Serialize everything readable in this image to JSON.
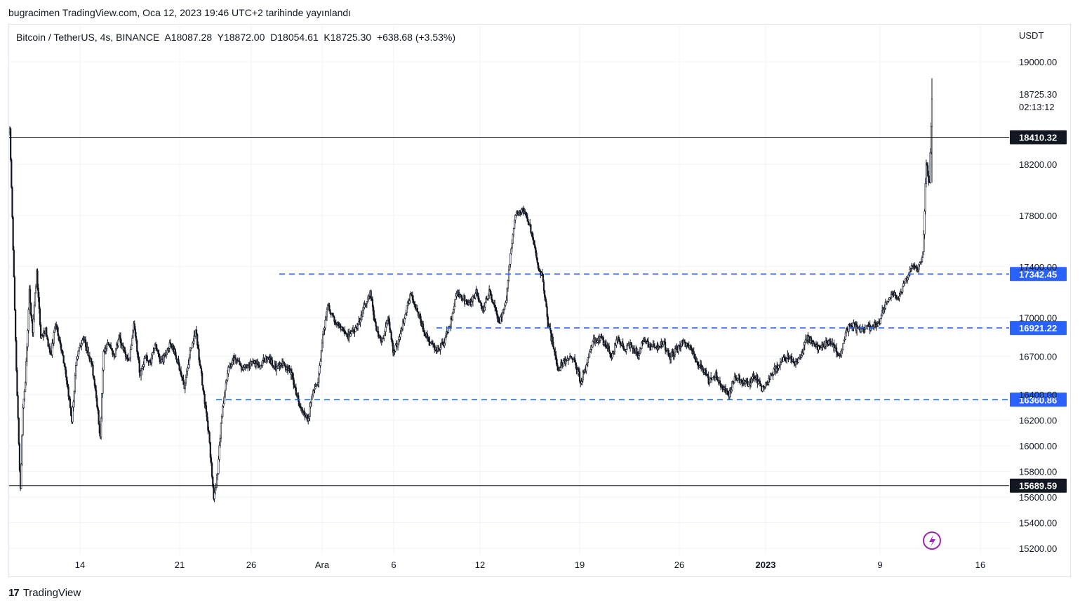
{
  "publisher_line": "bugracimen TradingView.com, Oca 12, 2023 19:46 UTC+2 tarihinde yayınlandı",
  "legend": "Bitcoin / TetherUS, 4s, BINANCE  A18087.28  Y18872.00  D18054.61  K18725.30  +638.68 (+3.53%)",
  "brand": "TradingView",
  "colors": {
    "candle": "#131722",
    "dash": "#2962ff",
    "label_blue": "#2962ff",
    "label_black": "#131722",
    "grid": "#f0f3fa",
    "alert": "#9c27b0"
  },
  "chart_data": {
    "type": "candlestick",
    "y_unit": "USDT",
    "ylim": [
      15100,
      19200
    ],
    "y_ticks": [
      15200,
      15400,
      15600,
      15800,
      16000,
      16200,
      16400,
      16700,
      17000,
      17400,
      17800,
      18200,
      19000
    ],
    "y_tick_labels": [
      "15200.00",
      "15400.00",
      "15600.00",
      "15800.00",
      "16000.00",
      "16200.00",
      "16400.00",
      "16700.00",
      "17000.00",
      "17400.00",
      "17800.00",
      "18200.00",
      "19000.00"
    ],
    "x_ticks": [
      "14",
      "21",
      "26",
      "Ara",
      "6",
      "12",
      "19",
      "26",
      "2023",
      "9",
      "16"
    ],
    "last_price": "18725.30",
    "countdown": "02:13:12",
    "levels": [
      {
        "value": 18410.32,
        "label": "18410.32",
        "style": "solid"
      },
      {
        "value": 17342.45,
        "label": "17342.45",
        "style": "dashed"
      },
      {
        "value": 16921.22,
        "label": "16921.22",
        "style": "dashed"
      },
      {
        "value": 16360.86,
        "label": "16360.86",
        "style": "dashed"
      },
      {
        "value": 15689.59,
        "label": "15689.59",
        "style": "solid"
      }
    ],
    "price_path": [
      [
        0,
        18450
      ],
      [
        3,
        17800
      ],
      [
        7,
        16800
      ],
      [
        10,
        16200
      ],
      [
        13,
        15650
      ],
      [
        16,
        16300
      ],
      [
        19,
        16500
      ],
      [
        24,
        17200
      ],
      [
        28,
        16900
      ],
      [
        33,
        17350
      ],
      [
        38,
        16850
      ],
      [
        44,
        16900
      ],
      [
        50,
        16700
      ],
      [
        56,
        16950
      ],
      [
        62,
        16800
      ],
      [
        70,
        16500
      ],
      [
        76,
        16200
      ],
      [
        82,
        16700
      ],
      [
        90,
        16850
      ],
      [
        100,
        16650
      ],
      [
        106,
        16400
      ],
      [
        111,
        16050
      ],
      [
        115,
        16750
      ],
      [
        121,
        16800
      ],
      [
        128,
        16700
      ],
      [
        134,
        16850
      ],
      [
        140,
        16750
      ],
      [
        146,
        16650
      ],
      [
        152,
        16950
      ],
      [
        160,
        16550
      ],
      [
        166,
        16700
      ],
      [
        172,
        16650
      ],
      [
        178,
        16800
      ],
      [
        184,
        16650
      ],
      [
        190,
        16700
      ],
      [
        196,
        16800
      ],
      [
        202,
        16750
      ],
      [
        208,
        16600
      ],
      [
        214,
        16450
      ],
      [
        220,
        16700
      ],
      [
        228,
        16900
      ],
      [
        236,
        16500
      ],
      [
        244,
        16100
      ],
      [
        250,
        15600
      ],
      [
        255,
        15800
      ],
      [
        260,
        16250
      ],
      [
        268,
        16600
      ],
      [
        276,
        16700
      ],
      [
        286,
        16600
      ],
      [
        296,
        16650
      ],
      [
        306,
        16620
      ],
      [
        316,
        16700
      ],
      [
        326,
        16600
      ],
      [
        336,
        16650
      ],
      [
        346,
        16550
      ],
      [
        356,
        16300
      ],
      [
        366,
        16200
      ],
      [
        372,
        16450
      ],
      [
        378,
        16500
      ],
      [
        384,
        16850
      ],
      [
        390,
        17100
      ],
      [
        396,
        17000
      ],
      [
        402,
        16950
      ],
      [
        408,
        16900
      ],
      [
        414,
        16850
      ],
      [
        420,
        16900
      ],
      [
        428,
        16950
      ],
      [
        436,
        17100
      ],
      [
        442,
        17200
      ],
      [
        448,
        16950
      ],
      [
        456,
        16800
      ],
      [
        464,
        17000
      ],
      [
        470,
        16750
      ],
      [
        476,
        16800
      ],
      [
        484,
        17000
      ],
      [
        492,
        17200
      ],
      [
        500,
        17050
      ],
      [
        508,
        16900
      ],
      [
        516,
        16800
      ],
      [
        524,
        16750
      ],
      [
        532,
        16800
      ],
      [
        540,
        16950
      ],
      [
        548,
        17200
      ],
      [
        556,
        17150
      ],
      [
        564,
        17100
      ],
      [
        572,
        17200
      ],
      [
        580,
        17050
      ],
      [
        588,
        17200
      ],
      [
        594,
        17100
      ],
      [
        600,
        16950
      ],
      [
        608,
        17100
      ],
      [
        614,
        17500
      ],
      [
        620,
        17800
      ],
      [
        628,
        17850
      ],
      [
        636,
        17750
      ],
      [
        642,
        17600
      ],
      [
        648,
        17400
      ],
      [
        654,
        17300
      ],
      [
        660,
        16950
      ],
      [
        666,
        16800
      ],
      [
        672,
        16600
      ],
      [
        678,
        16650
      ],
      [
        686,
        16700
      ],
      [
        694,
        16650
      ],
      [
        700,
        16500
      ],
      [
        706,
        16600
      ],
      [
        714,
        16800
      ],
      [
        722,
        16850
      ],
      [
        730,
        16800
      ],
      [
        738,
        16700
      ],
      [
        746,
        16850
      ],
      [
        754,
        16750
      ],
      [
        762,
        16800
      ],
      [
        770,
        16720
      ],
      [
        778,
        16820
      ],
      [
        786,
        16780
      ],
      [
        794,
        16760
      ],
      [
        802,
        16800
      ],
      [
        810,
        16700
      ],
      [
        818,
        16750
      ],
      [
        826,
        16820
      ],
      [
        834,
        16780
      ],
      [
        842,
        16650
      ],
      [
        850,
        16600
      ],
      [
        858,
        16500
      ],
      [
        866,
        16550
      ],
      [
        874,
        16450
      ],
      [
        882,
        16400
      ],
      [
        890,
        16550
      ],
      [
        898,
        16500
      ],
      [
        906,
        16480
      ],
      [
        914,
        16550
      ],
      [
        922,
        16450
      ],
      [
        930,
        16500
      ],
      [
        938,
        16600
      ],
      [
        946,
        16650
      ],
      [
        954,
        16700
      ],
      [
        962,
        16650
      ],
      [
        970,
        16700
      ],
      [
        978,
        16850
      ],
      [
        986,
        16800
      ],
      [
        994,
        16750
      ],
      [
        1002,
        16820
      ],
      [
        1010,
        16780
      ],
      [
        1018,
        16700
      ],
      [
        1026,
        16900
      ],
      [
        1034,
        16950
      ],
      [
        1042,
        16900
      ],
      [
        1050,
        16930
      ],
      [
        1058,
        16920
      ],
      [
        1066,
        16950
      ],
      [
        1074,
        17100
      ],
      [
        1082,
        17200
      ],
      [
        1090,
        17150
      ],
      [
        1096,
        17250
      ],
      [
        1102,
        17350
      ],
      [
        1108,
        17400
      ],
      [
        1114,
        17380
      ],
      [
        1120,
        17500
      ],
      [
        1124,
        18200
      ],
      [
        1128,
        18050
      ],
      [
        1131,
        18725
      ]
    ]
  }
}
